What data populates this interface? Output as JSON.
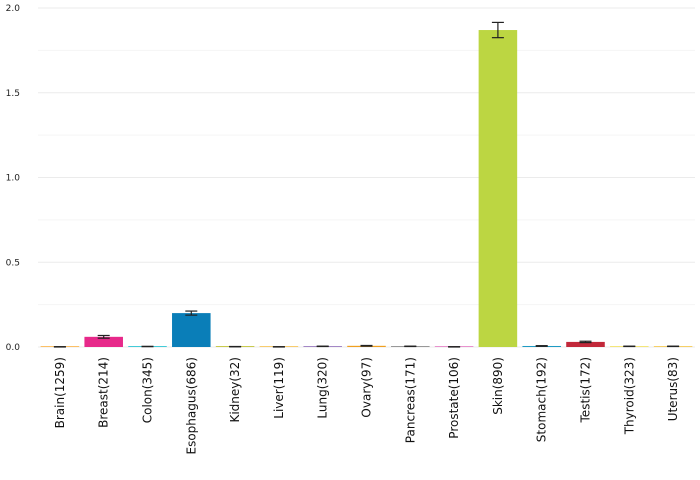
{
  "chart_data": {
    "type": "bar",
    "title": "",
    "xlabel": "",
    "ylabel": "",
    "ylim": [
      0,
      2.0
    ],
    "yticks": [
      0.0,
      0.5,
      1.0,
      1.5,
      2.0
    ],
    "ytick_labels": [
      "0.0",
      "0.5",
      "1.0",
      "1.5",
      "2.0"
    ],
    "grid": true,
    "legend": "none",
    "categories": [
      "Brain(1259)",
      "Breast(214)",
      "Colon(345)",
      "Esophagus(686)",
      "Kidney(32)",
      "Liver(119)",
      "Lung(320)",
      "Ovary(97)",
      "Pancreas(171)",
      "Prostate(106)",
      "Skin(890)",
      "Stomach(192)",
      "Testis(172)",
      "Thyroid(323)",
      "Uterus(83)"
    ],
    "values": [
      0.001,
      0.06,
      0.003,
      0.2,
      0.002,
      0.001,
      0.004,
      0.007,
      0.004,
      0.001,
      1.87,
      0.006,
      0.03,
      0.004,
      0.004
    ],
    "errors": [
      0.001,
      0.008,
      0.001,
      0.012,
      0.001,
      0.001,
      0.001,
      0.002,
      0.001,
      0.001,
      0.045,
      0.002,
      0.004,
      0.001,
      0.001
    ],
    "colors": [
      "#fbb040",
      "#e7298a",
      "#17becf",
      "#0a7eb8",
      "#bcbd22",
      "#f7c04a",
      "#8e6bb8",
      "#f0a020",
      "#7f7f7f",
      "#e377c2",
      "#bcd642",
      "#1f9bc4",
      "#c2283a",
      "#f1e05a",
      "#f4c542"
    ]
  }
}
